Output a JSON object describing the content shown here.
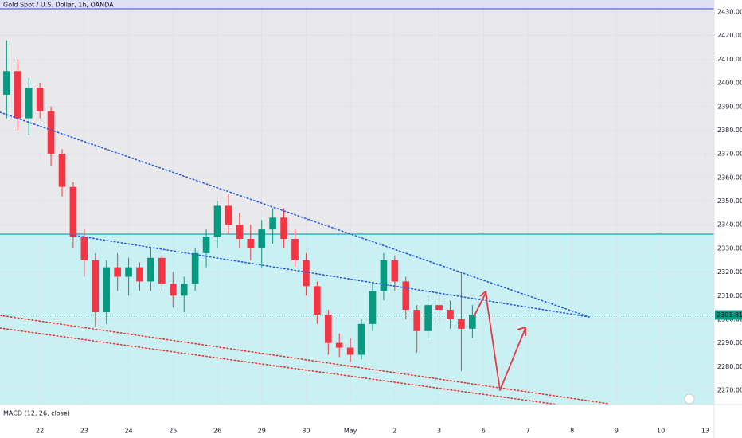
{
  "chart_data": {
    "type": "candlestick",
    "title": "Gold Spot / U.S. Dollar, 1h, OANDA",
    "indicator": "MACD (12, 26, close)",
    "x": [
      -0.75,
      -0.5,
      -0.25,
      0,
      0.25,
      0.5,
      0.75,
      1,
      1.25,
      1.5,
      1.75,
      2,
      2.25,
      2.5,
      2.75,
      3,
      3.25,
      3.5,
      3.75,
      4,
      4.25,
      4.5,
      4.75,
      5,
      5.25,
      5.5,
      5.75,
      6,
      6.25,
      6.5,
      6.75,
      7,
      7.25,
      7.5,
      7.75,
      8,
      8.25,
      8.5,
      8.75,
      9,
      9.25,
      9.5,
      9.75
    ],
    "open": [
      2395,
      2405,
      2385,
      2398,
      2388,
      2370,
      2356,
      2335,
      2325,
      2303,
      2322,
      2318,
      2322,
      2316,
      2326,
      2315,
      2310,
      2315,
      2328,
      2335,
      2348,
      2340,
      2334,
      2330,
      2338,
      2343,
      2334,
      2325,
      2314,
      2302,
      2290,
      2288,
      2285,
      2298,
      2312,
      2325,
      2316,
      2304,
      2295,
      2306,
      2304,
      2300,
      2296
    ],
    "high": [
      2418,
      2410,
      2402,
      2400,
      2390,
      2372,
      2358,
      2338,
      2328,
      2325,
      2328,
      2326,
      2324,
      2330,
      2328,
      2320,
      2318,
      2330,
      2338,
      2350,
      2353,
      2345,
      2340,
      2342,
      2347,
      2347,
      2338,
      2328,
      2316,
      2304,
      2294,
      2292,
      2300,
      2315,
      2328,
      2327,
      2318,
      2306,
      2310,
      2310,
      2308,
      2320,
      2306
    ],
    "low": [
      2385,
      2380,
      2378,
      2385,
      2365,
      2352,
      2330,
      2318,
      2297,
      2298,
      2312,
      2310,
      2312,
      2312,
      2312,
      2305,
      2303,
      2312,
      2322,
      2330,
      2336,
      2330,
      2325,
      2322,
      2332,
      2330,
      2322,
      2310,
      2298,
      2285,
      2284,
      2282,
      2283,
      2295,
      2308,
      2312,
      2300,
      2286,
      2292,
      2298,
      2296,
      2278,
      2292
    ],
    "close": [
      2405,
      2385,
      2398,
      2388,
      2370,
      2356,
      2335,
      2325,
      2303,
      2322,
      2318,
      2322,
      2316,
      2326,
      2315,
      2310,
      2315,
      2328,
      2335,
      2348,
      2340,
      2334,
      2330,
      2338,
      2343,
      2334,
      2325,
      2314,
      2302,
      2290,
      2288,
      2285,
      2298,
      2312,
      2325,
      2316,
      2304,
      2295,
      2306,
      2304,
      2300,
      2296,
      2302
    ],
    "up_color": "#089981",
    "down_color": "#f23645",
    "last_price": {
      "value": 2301.81,
      "label": "2301.810"
    },
    "xlim": [
      -0.9,
      15.2
    ],
    "xticks": [
      {
        "value": 0,
        "label": "22"
      },
      {
        "value": 1,
        "label": "23"
      },
      {
        "value": 2,
        "label": "24"
      },
      {
        "value": 3,
        "label": "25"
      },
      {
        "value": 4,
        "label": "26"
      },
      {
        "value": 5,
        "label": "29"
      },
      {
        "value": 6,
        "label": "30"
      },
      {
        "value": 7,
        "label": "May"
      },
      {
        "value": 8,
        "label": "2"
      },
      {
        "value": 9,
        "label": "3"
      },
      {
        "value": 10,
        "label": "6"
      },
      {
        "value": 11,
        "label": "7"
      },
      {
        "value": 12,
        "label": "8"
      },
      {
        "value": 13,
        "label": "9"
      },
      {
        "value": 14,
        "label": "10"
      },
      {
        "value": 15,
        "label": "13"
      }
    ],
    "ylim": [
      2430,
      2270
    ],
    "yticks": [
      {
        "value": 2430,
        "label": "2430.000"
      },
      {
        "value": 2420,
        "label": "2420.000"
      },
      {
        "value": 2410,
        "label": "2410.000"
      },
      {
        "value": 2400,
        "label": "2400.000"
      },
      {
        "value": 2390,
        "label": "2390.000"
      },
      {
        "value": 2380,
        "label": "2380.000"
      },
      {
        "value": 2370,
        "label": "2370.000"
      },
      {
        "value": 2360,
        "label": "2360.000"
      },
      {
        "value": 2350,
        "label": "2350.000"
      },
      {
        "value": 2340,
        "label": "2340.000"
      },
      {
        "value": 2330,
        "label": "2330.000"
      },
      {
        "value": 2320,
        "label": "2320.000"
      },
      {
        "value": 2310,
        "label": "2310.000"
      },
      {
        "value": 2300,
        "label": "2300.000"
      },
      {
        "value": 2290,
        "label": "2290.000"
      },
      {
        "value": 2280,
        "label": "2280.000"
      },
      {
        "value": 2270,
        "label": "2270.000"
      }
    ],
    "grid": true
  }
}
